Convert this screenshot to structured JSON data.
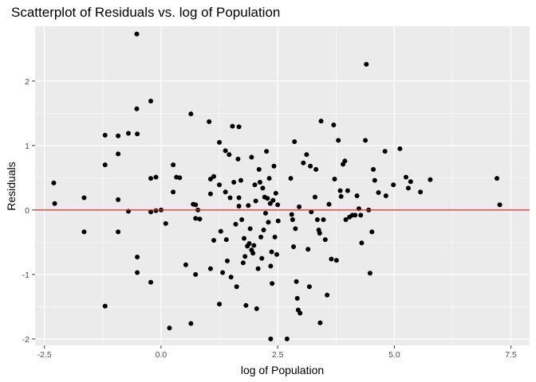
{
  "chart_data": {
    "type": "scatter",
    "title": "Scatterplot of Residuals vs. log of Population",
    "xlabel": "log of Population",
    "ylabel": "Residuals",
    "xlim": [
      -2.7,
      7.9
    ],
    "ylim": [
      -2.1,
      2.85
    ],
    "x_ticks": [
      -2.5,
      0.0,
      2.5,
      5.0,
      7.5
    ],
    "x_tick_labels": [
      "-2.5",
      "0.0",
      "2.5",
      "5.0",
      "7.5"
    ],
    "y_ticks": [
      -2,
      -1,
      0,
      1,
      2
    ],
    "y_tick_labels": [
      "-2",
      "-1",
      "0",
      "1",
      "2"
    ],
    "grid": true,
    "reference_line": {
      "y": 0,
      "color": "#e0262b"
    },
    "point_color": "#000000",
    "panel_background": "#ebebeb",
    "grid_color": "#ffffff",
    "series": [
      {
        "points": [
          [
            -2.3,
            0.42
          ],
          [
            -2.28,
            0.1
          ],
          [
            -1.65,
            0.19
          ],
          [
            -1.65,
            -0.34
          ],
          [
            -1.2,
            1.16
          ],
          [
            -1.2,
            0.7
          ],
          [
            -1.2,
            -1.49
          ],
          [
            -0.92,
            1.15
          ],
          [
            -0.92,
            0.87
          ],
          [
            -0.92,
            0.16
          ],
          [
            -0.92,
            -0.34
          ],
          [
            -0.7,
            1.19
          ],
          [
            -0.7,
            -0.02
          ],
          [
            -0.52,
            2.73
          ],
          [
            -0.52,
            1.57
          ],
          [
            -0.51,
            1.18
          ],
          [
            -0.51,
            -0.73
          ],
          [
            -0.51,
            -0.97
          ],
          [
            -0.22,
            1.69
          ],
          [
            -0.22,
            0.49
          ],
          [
            -0.22,
            -0.03
          ],
          [
            -0.22,
            -1.12
          ],
          [
            -0.11,
            0.51
          ],
          [
            -0.11,
            -0.01
          ],
          [
            0.0,
            0.0
          ],
          [
            0.1,
            -0.21
          ],
          [
            0.18,
            -1.83
          ],
          [
            0.26,
            0.7
          ],
          [
            0.26,
            0.28
          ],
          [
            0.33,
            0.51
          ],
          [
            0.4,
            0.5
          ],
          [
            0.53,
            -0.85
          ],
          [
            0.64,
            1.49
          ],
          [
            0.64,
            -1.76
          ],
          [
            0.69,
            0.09
          ],
          [
            0.74,
            0.08
          ],
          [
            0.74,
            -0.13
          ],
          [
            0.74,
            -1.0
          ],
          [
            0.79,
            0.0
          ],
          [
            0.83,
            -0.14
          ],
          [
            1.03,
            1.37
          ],
          [
            1.06,
            0.25
          ],
          [
            1.06,
            -0.91
          ],
          [
            1.06,
            0.48
          ],
          [
            1.13,
            0.52
          ],
          [
            1.13,
            -0.47
          ],
          [
            1.25,
            1.05
          ],
          [
            1.25,
            0.39
          ],
          [
            1.25,
            -1.46
          ],
          [
            1.28,
            -0.33
          ],
          [
            1.32,
            -0.97
          ],
          [
            1.38,
            0.92
          ],
          [
            1.38,
            0.28
          ],
          [
            1.4,
            -0.46
          ],
          [
            1.42,
            -0.79
          ],
          [
            1.46,
            0.86
          ],
          [
            1.48,
            0.19
          ],
          [
            1.5,
            -1.04
          ],
          [
            1.53,
            1.3
          ],
          [
            1.56,
            0.43
          ],
          [
            1.6,
            -0.22
          ],
          [
            1.62,
            -1.19
          ],
          [
            1.65,
            0.79
          ],
          [
            1.67,
            1.29
          ],
          [
            1.67,
            0.19
          ],
          [
            1.67,
            0.06
          ],
          [
            1.71,
            0.46
          ],
          [
            1.73,
            -0.15
          ],
          [
            1.76,
            -0.82
          ],
          [
            1.78,
            -0.44
          ],
          [
            1.8,
            -0.72
          ],
          [
            1.82,
            -1.48
          ],
          [
            1.85,
            -0.56
          ],
          [
            1.87,
            0.07
          ],
          [
            1.89,
            -0.52
          ],
          [
            1.91,
            -0.29
          ],
          [
            1.94,
            0.82
          ],
          [
            1.94,
            -0.62
          ],
          [
            1.97,
            -0.67
          ],
          [
            1.99,
            -0.55
          ],
          [
            2.01,
            0.39
          ],
          [
            2.03,
            0.14
          ],
          [
            2.05,
            -1.53
          ],
          [
            2.08,
            -0.91
          ],
          [
            2.1,
            0.63
          ],
          [
            2.12,
            0.43
          ],
          [
            2.14,
            -0.42
          ],
          [
            2.16,
            -0.75
          ],
          [
            2.18,
            0.34
          ],
          [
            2.2,
            -0.31
          ],
          [
            2.22,
            0.2
          ],
          [
            2.24,
            -0.05
          ],
          [
            2.26,
            0.91
          ],
          [
            2.28,
            0.18
          ],
          [
            2.3,
            -0.19
          ],
          [
            2.32,
            0.49
          ],
          [
            2.34,
            0.1
          ],
          [
            2.35,
            -0.87
          ],
          [
            2.37,
            -0.65
          ],
          [
            2.38,
            -1.14
          ],
          [
            2.4,
            0.15
          ],
          [
            2.42,
            0.68
          ],
          [
            2.44,
            -0.42
          ],
          [
            2.46,
            0.26
          ],
          [
            2.48,
            -0.69
          ],
          [
            2.5,
            0.08
          ],
          [
            2.51,
            -0.17
          ],
          [
            2.35,
            -2.0
          ],
          [
            2.7,
            -2.0
          ],
          [
            2.78,
            0.49
          ],
          [
            2.8,
            -0.07
          ],
          [
            2.82,
            -0.15
          ],
          [
            2.84,
            -0.57
          ],
          [
            2.86,
            1.06
          ],
          [
            2.88,
            -0.29
          ],
          [
            2.9,
            -1.11
          ],
          [
            2.92,
            -1.37
          ],
          [
            2.94,
            -1.55
          ],
          [
            2.96,
            0.05
          ],
          [
            2.98,
            -1.6
          ],
          [
            3.05,
            0.73
          ],
          [
            3.12,
            0.86
          ],
          [
            3.15,
            -0.61
          ],
          [
            3.18,
            -1.19
          ],
          [
            3.2,
            0.68
          ],
          [
            3.22,
            -0.03
          ],
          [
            3.3,
            0.2
          ],
          [
            3.32,
            0.63
          ],
          [
            3.35,
            -0.15
          ],
          [
            3.38,
            -0.31
          ],
          [
            3.4,
            -0.36
          ],
          [
            3.41,
            -1.75
          ],
          [
            3.43,
            1.38
          ],
          [
            3.48,
            -0.15
          ],
          [
            3.52,
            -0.46
          ],
          [
            3.56,
            -1.32
          ],
          [
            3.6,
            0.09
          ],
          [
            3.65,
            -0.76
          ],
          [
            3.7,
            1.32
          ],
          [
            3.72,
            0.48
          ],
          [
            3.76,
            -0.78
          ],
          [
            3.8,
            1.08
          ],
          [
            3.84,
            0.3
          ],
          [
            3.86,
            0.21
          ],
          [
            3.9,
            0.71
          ],
          [
            3.94,
            0.76
          ],
          [
            3.96,
            -0.15
          ],
          [
            4.0,
            0.3
          ],
          [
            4.04,
            -0.11
          ],
          [
            4.1,
            -0.08
          ],
          [
            4.16,
            -0.08
          ],
          [
            4.2,
            0.22
          ],
          [
            4.24,
            0.02
          ],
          [
            4.28,
            -0.08
          ],
          [
            4.3,
            -0.51
          ],
          [
            4.38,
            1.08
          ],
          [
            4.4,
            2.26
          ],
          [
            4.45,
            0.0
          ],
          [
            4.48,
            -0.98
          ],
          [
            4.52,
            -0.34
          ],
          [
            4.55,
            0.63
          ],
          [
            4.58,
            0.46
          ],
          [
            4.66,
            0.27
          ],
          [
            4.8,
            0.91
          ],
          [
            4.82,
            0.22
          ],
          [
            4.98,
            0.39
          ],
          [
            5.12,
            0.95
          ],
          [
            5.25,
            0.51
          ],
          [
            5.3,
            0.34
          ],
          [
            5.35,
            0.44
          ],
          [
            5.56,
            0.28
          ],
          [
            5.77,
            0.47
          ],
          [
            7.2,
            0.49
          ],
          [
            7.26,
            0.08
          ]
        ]
      }
    ]
  }
}
